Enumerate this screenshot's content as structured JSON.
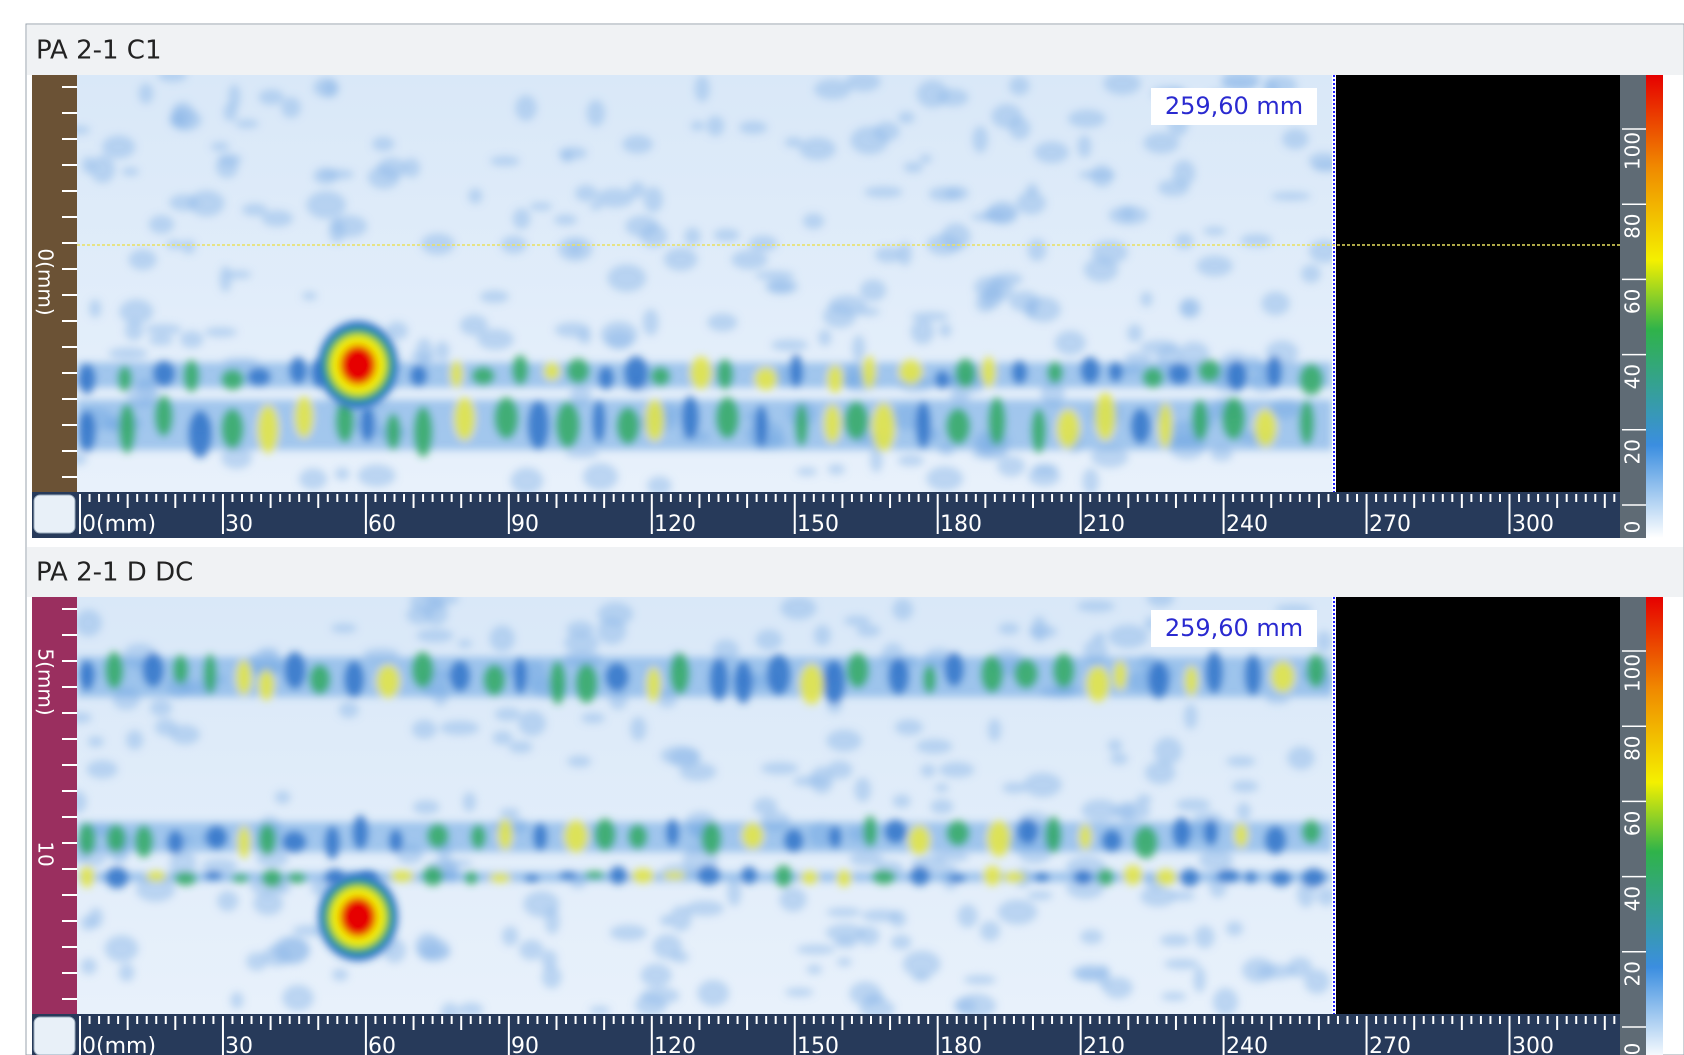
{
  "panels": [
    {
      "title": "PA 2-1 C1",
      "cursor_label": "259,60 mm",
      "left_axis_labels": [
        "0(mm)"
      ],
      "x_axis_labels": [
        "0(mm)",
        "30",
        "60",
        "90",
        "120",
        "150",
        "180",
        "210",
        "240",
        "270",
        "300"
      ],
      "colorbar_labels": [
        "0",
        "20",
        "40",
        "60",
        "80",
        "100"
      ]
    },
    {
      "title": "PA 2-1 D DC",
      "cursor_label": "259,60 mm",
      "left_axis_labels": [
        "5(mm)",
        "10"
      ],
      "x_axis_labels": [
        "0(mm)",
        "30",
        "60",
        "90",
        "120",
        "150",
        "180",
        "210",
        "240",
        "270",
        "300"
      ],
      "colorbar_labels": [
        "0",
        "20",
        "40",
        "60",
        "80",
        "100"
      ]
    }
  ]
}
